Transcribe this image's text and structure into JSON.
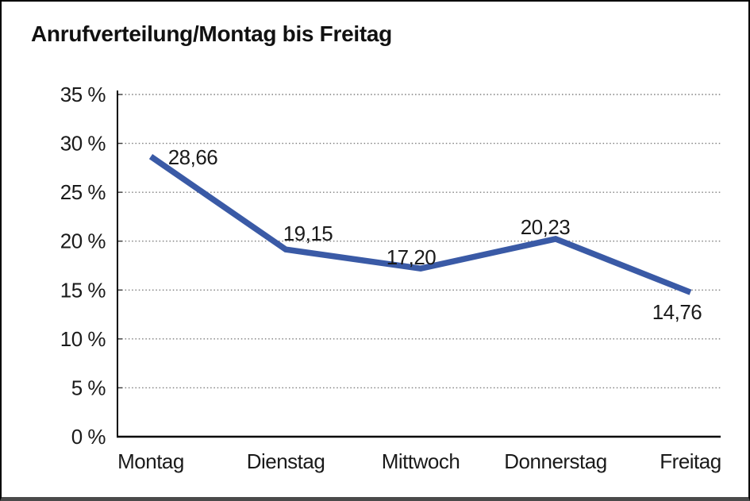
{
  "chart_data": {
    "type": "line",
    "title": "Anrufverteilung/Montag bis Freitag",
    "categories": [
      "Montag",
      "Dienstag",
      "Mittwoch",
      "Donnerstag",
      "Freitag"
    ],
    "series": [
      {
        "values": [
          28.66,
          19.15,
          17.2,
          20.23,
          14.76
        ],
        "point_labels": [
          "28,66",
          "19,15",
          "17,20",
          "20,23",
          "14,76"
        ],
        "color": "#3A5AA6"
      }
    ],
    "xlabel": "",
    "ylabel": "",
    "ylim": [
      0,
      35
    ],
    "ytick_step": 5,
    "ytick_labels": [
      "0 %",
      "5 %",
      "10 %",
      "15 %",
      "20 %",
      "25 %",
      "30 %",
      "35 %"
    ],
    "grid": "horizontal-dotted",
    "legend": "none"
  },
  "colors": {
    "line": "#3A5AA6",
    "grid_dots": "#7d7d7d",
    "grid_tick": "#3c3c3c",
    "axis": "#000000",
    "text": "#1a1a1a",
    "frame_border": "#000000",
    "bottom_edge": "#4a4a4a",
    "background": "#ffffff"
  }
}
